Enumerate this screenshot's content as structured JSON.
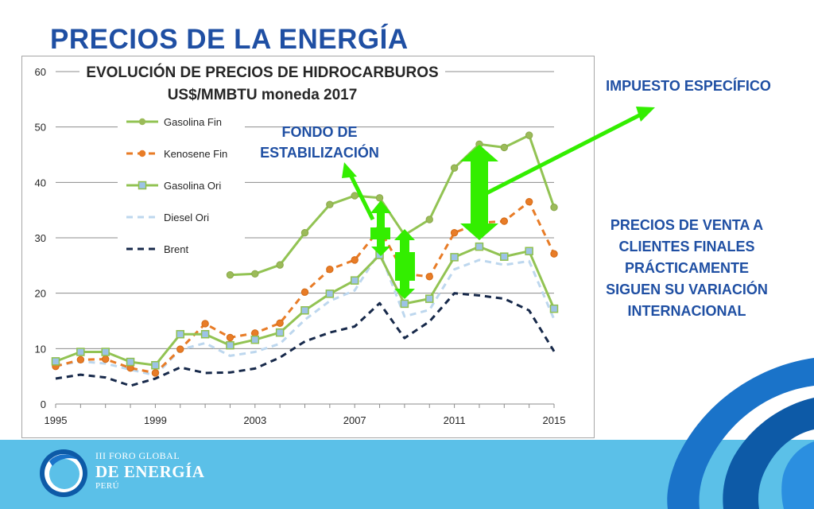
{
  "slide": {
    "title": "PRECIOS DE LA ENERGÍA",
    "annotations": {
      "impuesto": "IMPUESTO ESPECÍFICO",
      "fondo": [
        "FONDO DE",
        "ESTABILIZACIÓN"
      ],
      "precios": [
        "PRECIOS DE VENTA A",
        "CLIENTES FINALES",
        "PRÁCTICAMENTE",
        "SIGUEN SU VARIACIÓN",
        "INTERNACIONAL"
      ]
    },
    "footer": {
      "line1": "III FORO GLOBAL",
      "line2": "DE ENERGÍA",
      "line3": "PERÚ"
    },
    "colors": {
      "title": "#1f4fa3",
      "arrow": "#33ee00",
      "footer_band": "#5bc0e8"
    }
  },
  "chart_data": {
    "type": "line",
    "title": "EVOLUCIÓN DE PRECIOS DE HIDROCARBUROS",
    "subtitle": "US$/MMBTU moneda 2017",
    "x": [
      1995,
      1996,
      1997,
      1998,
      1999,
      2000,
      2001,
      2002,
      2003,
      2004,
      2005,
      2006,
      2007,
      2008,
      2009,
      2010,
      2011,
      2012,
      2013,
      2014,
      2015
    ],
    "xticks": [
      1995,
      1999,
      2003,
      2007,
      2011,
      2015
    ],
    "yticks": [
      0,
      10,
      20,
      30,
      40,
      50,
      60
    ],
    "xlim": [
      1995,
      2015
    ],
    "ylim": [
      0,
      60
    ],
    "grid": true,
    "legend_position": "top-left",
    "series": [
      {
        "name": "Gasolina Fin",
        "color": "#92c353",
        "dash": "solid",
        "marker": "circle",
        "values": [
          null,
          null,
          null,
          null,
          null,
          null,
          null,
          23.3,
          23.5,
          25.1,
          30.9,
          36.0,
          37.6,
          37.2,
          30.5,
          33.3,
          42.6,
          46.9,
          46.3,
          48.5,
          35.5
        ]
      },
      {
        "name": "Kenosene Fin",
        "color": "#e87c27",
        "dash": "dashed",
        "marker": "circle",
        "values": [
          6.8,
          8.0,
          8.1,
          6.5,
          5.6,
          9.9,
          14.5,
          12.0,
          12.8,
          14.6,
          20.2,
          24.3,
          26.0,
          31.6,
          23.5,
          23.0,
          30.9,
          32.7,
          33.0,
          36.5,
          27.1
        ]
      },
      {
        "name": "Gasolina Ori",
        "color": "#92c353",
        "dash": "solid",
        "marker": "square",
        "values": [
          7.7,
          9.4,
          9.4,
          7.6,
          7.0,
          12.6,
          12.6,
          10.6,
          11.6,
          12.9,
          16.9,
          19.9,
          22.3,
          26.9,
          18.1,
          19.0,
          26.5,
          28.4,
          26.6,
          27.6,
          17.2
        ]
      },
      {
        "name": "Diesel Ori",
        "color": "#bdd7ee",
        "dash": "dashed",
        "marker": "none",
        "values": [
          6.9,
          7.7,
          7.3,
          6.2,
          5.2,
          9.8,
          11.0,
          8.7,
          9.4,
          10.9,
          15.2,
          18.6,
          20.5,
          27.5,
          15.8,
          17.0,
          24.3,
          26.0,
          25.1,
          25.8,
          15.3
        ]
      },
      {
        "name": "Brent",
        "color": "#17294a",
        "dash": "dashed",
        "marker": "none",
        "values": [
          4.6,
          5.3,
          4.8,
          3.3,
          4.6,
          6.6,
          5.6,
          5.7,
          6.4,
          8.4,
          11.3,
          12.9,
          14.0,
          18.2,
          11.9,
          14.9,
          20.0,
          19.6,
          19.0,
          16.9,
          9.5
        ]
      }
    ]
  }
}
